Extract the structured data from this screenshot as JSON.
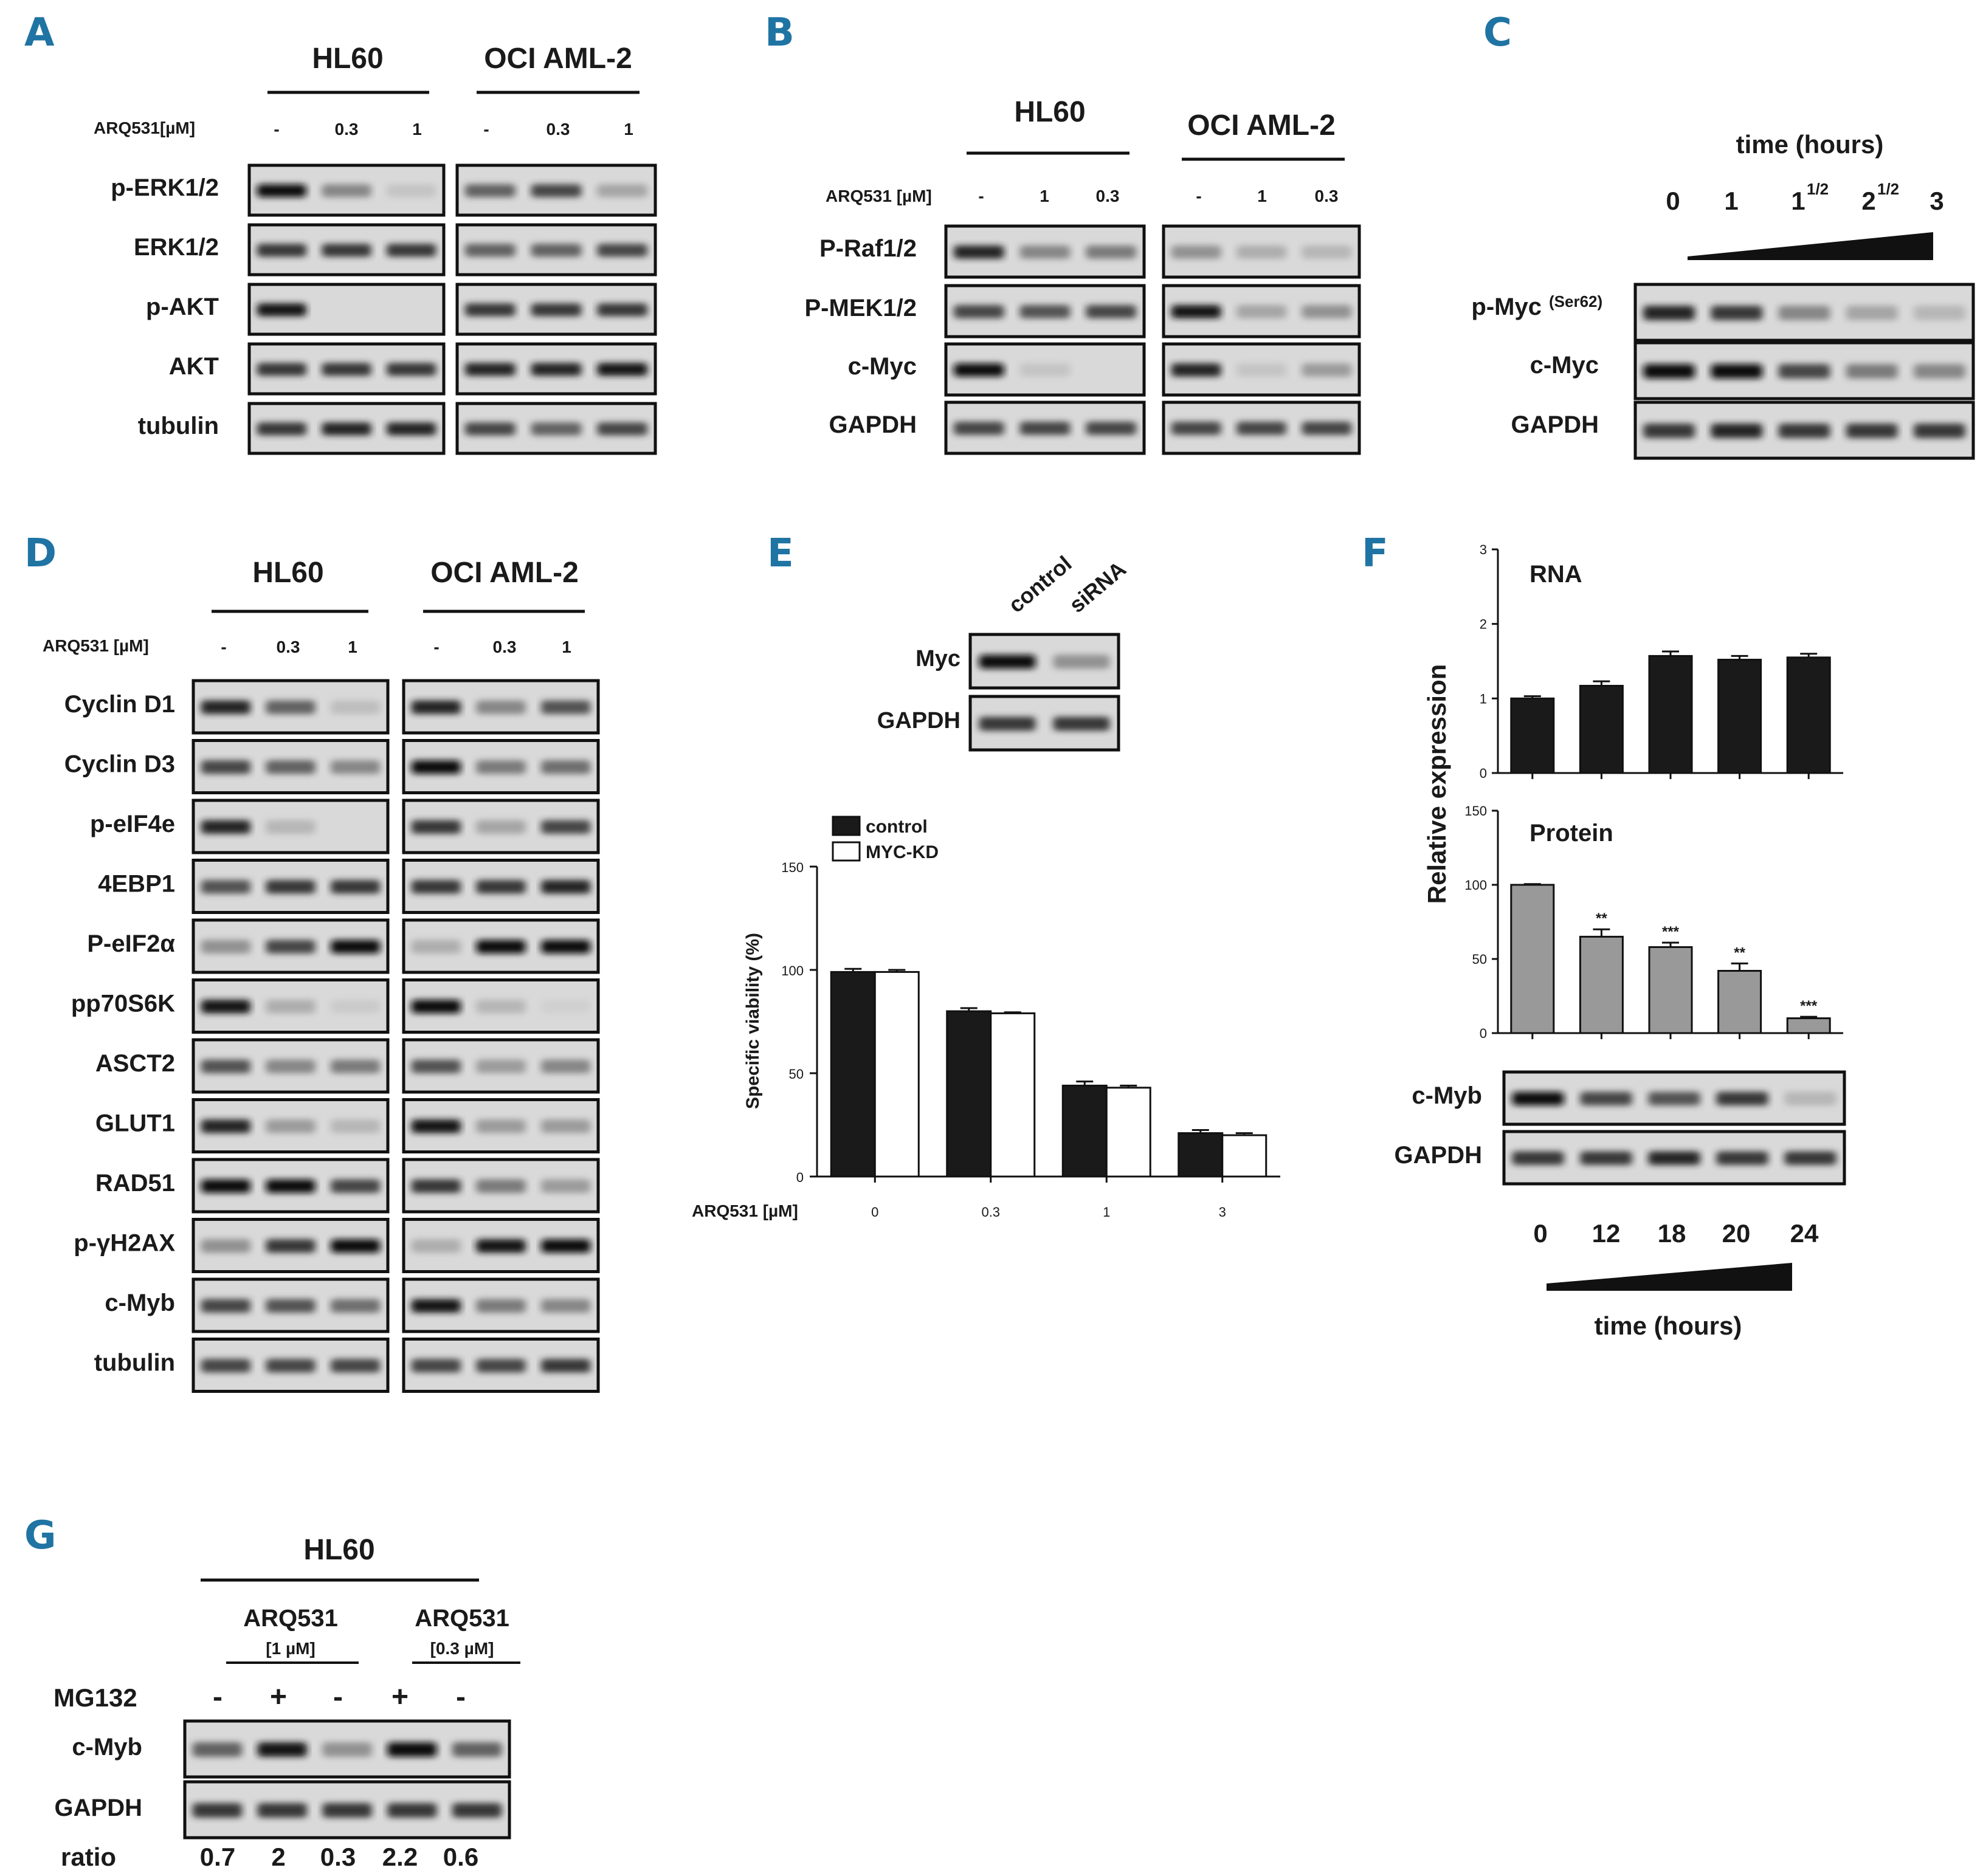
{
  "panels": {
    "A": {
      "letter": "A",
      "cell_lines": [
        "HL60",
        "OCI AML-2"
      ],
      "treatment_label": "ARQ531[µM]",
      "conditions": [
        "-",
        "0.3",
        "1"
      ],
      "rows": [
        "p-ERK1/2",
        "ERK1/2",
        "p-AKT",
        "AKT",
        "tubulin"
      ]
    },
    "B": {
      "letter": "B",
      "cell_lines": [
        "HL60",
        "OCI AML-2"
      ],
      "treatment_label": "ARQ531 [µM]",
      "conditions": [
        "-",
        "1",
        "0.3"
      ],
      "rows": [
        "P-Raf1/2",
        "P-MEK1/2",
        "c-Myc",
        "GAPDH"
      ]
    },
    "C": {
      "letter": "C",
      "time_label": "time (hours)",
      "time_points": [
        "0",
        "1",
        "1",
        "2",
        "3"
      ],
      "time_sup": [
        "",
        "",
        "1/2",
        "1/2",
        ""
      ],
      "rows": [
        "p-Myc",
        "c-Myc",
        "GAPDH"
      ],
      "row_sup": "(Ser62)"
    },
    "D": {
      "letter": "D",
      "cell_lines": [
        "HL60",
        "OCI AML-2"
      ],
      "treatment_label": "ARQ531 [µM]",
      "conditions": [
        "-",
        "0.3",
        "1"
      ],
      "rows": [
        "Cyclin D1",
        "Cyclin D3",
        "p-eIF4e",
        "4EBP1",
        "P-eIF2α",
        "pp70S6K",
        "ASCT2",
        "GLUT1",
        "RAD51",
        "p-γH2AX",
        "c-Myb",
        "tubulin"
      ]
    },
    "E": {
      "letter": "E",
      "blot": {
        "lanes": [
          "control",
          "siRNA"
        ],
        "rows": [
          "Myc",
          "GAPDH"
        ]
      },
      "legend": [
        "control",
        "MYC-KD"
      ],
      "ylabel": "Specific viability (%)",
      "xlabel": "ARQ531 [µM]",
      "yticks": [
        "0",
        "50",
        "100",
        "150"
      ]
    },
    "F": {
      "letter": "F",
      "ylabel": "Relative expression",
      "rna_title": "RNA",
      "protein_title": "Protein",
      "rna_yticks": [
        "0",
        "1",
        "2",
        "3"
      ],
      "protein_yticks": [
        "0",
        "50",
        "100",
        "150"
      ],
      "significance": [
        "",
        "**",
        "***",
        "**",
        "***"
      ],
      "blot_rows": [
        "c-Myb",
        "GAPDH"
      ],
      "time_points": [
        "0",
        "12",
        "18",
        "20",
        "24"
      ],
      "time_label": "time (hours)"
    },
    "G": {
      "letter": "G",
      "cell_line": "HL60",
      "groups": [
        {
          "drug": "ARQ531",
          "dose": "[1 µM]"
        },
        {
          "drug": "ARQ531",
          "dose": "[0.3 µM]"
        }
      ],
      "mg132_label": "MG132",
      "mg132": [
        "-",
        "+",
        "-",
        "+",
        "-"
      ],
      "rows": [
        "c-Myb",
        "GAPDH"
      ],
      "ratio_label": "ratio",
      "ratios": [
        "0.7",
        "2",
        "0.3",
        "2.2",
        "0.6"
      ]
    }
  },
  "chart_data": [
    {
      "type": "bar",
      "panel": "E",
      "categories": [
        "0",
        "0.3",
        "1",
        "3"
      ],
      "series": [
        {
          "name": "control",
          "values": [
            99,
            80,
            44,
            21
          ],
          "errors": [
            1.5,
            1.5,
            2,
            1.5
          ],
          "color": "#1a1a1a"
        },
        {
          "name": "MYC-KD",
          "values": [
            99,
            79,
            43,
            20
          ],
          "errors": [
            1,
            0.5,
            1,
            1
          ],
          "color": "#ffffff"
        }
      ],
      "xlabel": "ARQ531 [µM]",
      "ylabel": "Specific viability (%)",
      "ylim": [
        0,
        150
      ]
    },
    {
      "type": "bar",
      "panel": "F",
      "title": "RNA",
      "categories": [
        "0",
        "12",
        "18",
        "20",
        "24"
      ],
      "series": [
        {
          "values": [
            1.0,
            1.17,
            1.57,
            1.52,
            1.55
          ],
          "errors": [
            0.03,
            0.06,
            0.06,
            0.05,
            0.05
          ],
          "color": "#1a1a1a"
        }
      ],
      "ylabel": "Relative expression",
      "ylim": [
        0,
        3
      ]
    },
    {
      "type": "bar",
      "panel": "F",
      "title": "Protein",
      "categories": [
        "0",
        "12",
        "18",
        "20",
        "24"
      ],
      "series": [
        {
          "values": [
            100,
            65,
            58,
            42,
            10
          ],
          "errors": [
            0.5,
            5,
            3,
            5,
            1
          ],
          "color": "#999999"
        }
      ],
      "ylabel": "Relative expression",
      "ylim": [
        0,
        150
      ]
    }
  ],
  "blot_intensity": {
    "A": [
      [
        [
          1.0,
          0.55,
          0.2
        ],
        [
          0.7,
          0.8,
          0.4
        ]
      ],
      [
        [
          0.85,
          0.85,
          0.85
        ],
        [
          0.7,
          0.7,
          0.8
        ]
      ],
      [
        [
          0.95,
          0.0,
          0.0
        ],
        [
          0.85,
          0.85,
          0.85
        ]
      ],
      [
        [
          0.85,
          0.85,
          0.85
        ],
        [
          0.9,
          0.9,
          0.95
        ]
      ],
      [
        [
          0.85,
          0.9,
          0.9
        ],
        [
          0.8,
          0.7,
          0.8
        ]
      ]
    ],
    "B": [
      [
        [
          0.9,
          0.55,
          0.6
        ],
        [
          0.5,
          0.35,
          0.3
        ]
      ],
      [
        [
          0.8,
          0.75,
          0.8
        ],
        [
          0.95,
          0.4,
          0.5
        ]
      ],
      [
        [
          1.0,
          0.2,
          0.0
        ],
        [
          0.9,
          0.2,
          0.45
        ]
      ],
      [
        [
          0.8,
          0.8,
          0.8
        ],
        [
          0.8,
          0.8,
          0.8
        ]
      ]
    ],
    "C": [
      [
        0.9,
        0.85,
        0.55,
        0.4,
        0.3
      ],
      [
        1.0,
        1.0,
        0.8,
        0.6,
        0.55
      ],
      [
        0.85,
        0.9,
        0.85,
        0.85,
        0.85
      ]
    ],
    "D": [
      [
        [
          0.9,
          0.7,
          0.25
        ],
        [
          0.9,
          0.55,
          0.75
        ]
      ],
      [
        [
          0.8,
          0.7,
          0.55
        ],
        [
          1.0,
          0.6,
          0.65
        ]
      ],
      [
        [
          0.9,
          0.3,
          0.0
        ],
        [
          0.85,
          0.4,
          0.8
        ]
      ],
      [
        [
          0.75,
          0.85,
          0.85
        ],
        [
          0.85,
          0.85,
          0.9
        ]
      ],
      [
        [
          0.5,
          0.8,
          1.0
        ],
        [
          0.35,
          1.0,
          1.0
        ]
      ],
      [
        [
          0.95,
          0.35,
          0.15
        ],
        [
          1.0,
          0.3,
          0.1
        ]
      ],
      [
        [
          0.75,
          0.55,
          0.6
        ],
        [
          0.75,
          0.45,
          0.55
        ]
      ],
      [
        [
          0.9,
          0.45,
          0.3
        ],
        [
          0.95,
          0.45,
          0.45
        ]
      ],
      [
        [
          1.0,
          1.0,
          0.8
        ],
        [
          0.85,
          0.6,
          0.45
        ]
      ],
      [
        [
          0.5,
          0.85,
          1.0
        ],
        [
          0.35,
          0.95,
          1.0
        ]
      ],
      [
        [
          0.8,
          0.75,
          0.65
        ],
        [
          0.95,
          0.6,
          0.55
        ]
      ],
      [
        [
          0.8,
          0.8,
          0.8
        ],
        [
          0.8,
          0.8,
          0.85
        ]
      ]
    ],
    "E": [
      [
        1.0,
        0.5
      ],
      [
        0.85,
        0.85
      ]
    ],
    "F": [
      [
        1.0,
        0.8,
        0.75,
        0.85,
        0.3
      ],
      [
        0.85,
        0.85,
        0.9,
        0.85,
        0.85
      ]
    ],
    "G": [
      [
        0.7,
        0.95,
        0.5,
        1.0,
        0.7
      ],
      [
        0.85,
        0.85,
        0.85,
        0.85,
        0.85
      ]
    ]
  }
}
